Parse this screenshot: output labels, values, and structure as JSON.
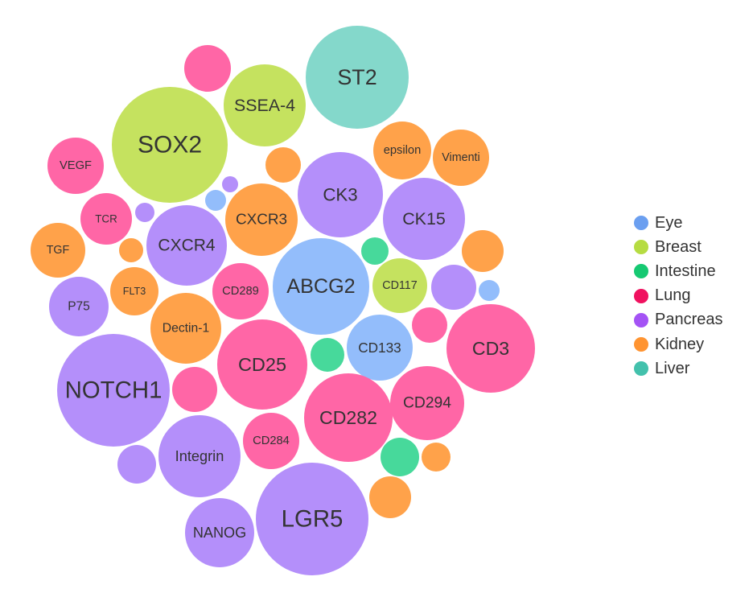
{
  "chart_data": {
    "type": "bubble",
    "title": "",
    "legend": {
      "placement": "right"
    },
    "categories": [
      {
        "name": "Eye",
        "color": "#93bdfb"
      },
      {
        "name": "Breast",
        "color": "#c5e25f"
      },
      {
        "name": "Intestine",
        "color": "#47d99b"
      },
      {
        "name": "Lung",
        "color": "#ff66a6"
      },
      {
        "name": "Pancreas",
        "color": "#b48ffa"
      },
      {
        "name": "Kidney",
        "color": "#ffa24a"
      },
      {
        "name": "Liver",
        "color": "#84d8cb"
      }
    ],
    "legend_colors": [
      "#6b9ff0",
      "#b6dc42",
      "#16c972",
      "#f0115f",
      "#a453f5",
      "#ff9431",
      "#43c1ac"
    ],
    "bubbles": [
      {
        "label": "ST2",
        "category": "Liver",
        "value": 64
      },
      {
        "label": "SSEA-4",
        "category": "Breast",
        "value": 51
      },
      {
        "label": "SOX2",
        "category": "Breast",
        "value": 72
      },
      {
        "label": "",
        "category": "Lung",
        "value": 29
      },
      {
        "label": "VEGF",
        "category": "Lung",
        "value": 35
      },
      {
        "label": "epsilon",
        "category": "Kidney",
        "value": 36
      },
      {
        "label": "Vimenti",
        "category": "Kidney",
        "value": 35
      },
      {
        "label": "",
        "category": "Kidney",
        "value": 22
      },
      {
        "label": "CK3",
        "category": "Pancreas",
        "value": 53
      },
      {
        "label": "CK15",
        "category": "Pancreas",
        "value": 51
      },
      {
        "label": "CXCR3",
        "category": "Kidney",
        "value": 45
      },
      {
        "label": "",
        "category": "Eye",
        "value": 13
      },
      {
        "label": "",
        "category": "Pancreas",
        "value": 10
      },
      {
        "label": "TCR",
        "category": "Lung",
        "value": 32
      },
      {
        "label": "",
        "category": "Pancreas",
        "value": 12
      },
      {
        "label": "TGF",
        "category": "Kidney",
        "value": 34
      },
      {
        "label": "",
        "category": "Kidney",
        "value": 15
      },
      {
        "label": "CXCR4",
        "category": "Pancreas",
        "value": 50
      },
      {
        "label": "",
        "category": "Kidney",
        "value": 26
      },
      {
        "label": "",
        "category": "Intestine",
        "value": 17
      },
      {
        "label": "CD289",
        "category": "Lung",
        "value": 35
      },
      {
        "label": "ABCG2",
        "category": "Eye",
        "value": 60
      },
      {
        "label": "CD117",
        "category": "Breast",
        "value": 34
      },
      {
        "label": "",
        "category": "Pancreas",
        "value": 28
      },
      {
        "label": "",
        "category": "Eye",
        "value": 13
      },
      {
        "label": "FLT3",
        "category": "Kidney",
        "value": 30
      },
      {
        "label": "P75",
        "category": "Pancreas",
        "value": 37
      },
      {
        "label": "Dectin-1",
        "category": "Kidney",
        "value": 44
      },
      {
        "label": "CD25",
        "category": "Lung",
        "value": 56
      },
      {
        "label": "",
        "category": "Intestine",
        "value": 21
      },
      {
        "label": "CD133",
        "category": "Eye",
        "value": 41
      },
      {
        "label": "",
        "category": "Lung",
        "value": 22
      },
      {
        "label": "CD3",
        "category": "Lung",
        "value": 55
      },
      {
        "label": "NOTCH1",
        "category": "Pancreas",
        "value": 70
      },
      {
        "label": "",
        "category": "Lung",
        "value": 28
      },
      {
        "label": "CD282",
        "category": "Lung",
        "value": 55
      },
      {
        "label": "CD294",
        "category": "Lung",
        "value": 46
      },
      {
        "label": "Integrin",
        "category": "Pancreas",
        "value": 51
      },
      {
        "label": "CD284",
        "category": "Lung",
        "value": 35
      },
      {
        "label": "",
        "category": "Intestine",
        "value": 24
      },
      {
        "label": "",
        "category": "Kidney",
        "value": 18
      },
      {
        "label": "",
        "category": "Pancreas",
        "value": 24
      },
      {
        "label": "",
        "category": "Kidney",
        "value": 26
      },
      {
        "label": "LGR5",
        "category": "Pancreas",
        "value": 70
      },
      {
        "label": "NANOG",
        "category": "Pancreas",
        "value": 43
      }
    ]
  }
}
